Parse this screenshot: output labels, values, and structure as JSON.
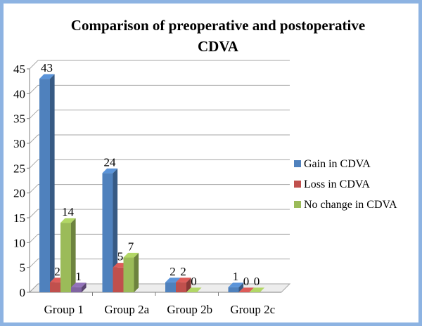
{
  "chart_data": {
    "type": "bar",
    "title_line1": "Comparison of preoperative and postoperative",
    "title_line2": "CDVA",
    "categories": [
      "Group 1",
      "Group 2a",
      "Group 2b",
      "Group 2c"
    ],
    "series": [
      {
        "name": "Gain in CDVA",
        "values": [
          43,
          24,
          2,
          1
        ],
        "color": "#4f81bd",
        "labels": [
          "43",
          "24",
          "2",
          "1"
        ]
      },
      {
        "name": "Loss in CDVA",
        "values": [
          2,
          5,
          2,
          0
        ],
        "color": "#c0504d",
        "labels": [
          "2",
          "5",
          "2",
          "0"
        ]
      },
      {
        "name": "No change in CDVA",
        "values": [
          14,
          7,
          0,
          0
        ],
        "color": "#9bbb59",
        "labels": [
          "14",
          "7",
          "0",
          "0"
        ]
      },
      {
        "name": "",
        "values": [
          1,
          null,
          null,
          null
        ],
        "color": "#8064a2",
        "labels": [
          "1",
          "",
          "",
          ""
        ]
      }
    ],
    "ylim": [
      0,
      45
    ],
    "yticks": [
      0,
      5,
      10,
      15,
      20,
      25,
      30,
      35,
      40,
      45
    ],
    "legend": [
      "Gain in CDVA",
      "Loss in CDVA",
      "No change in CDVA"
    ],
    "legend_position": "right",
    "grid": true,
    "style": "3d-clustered-column"
  }
}
